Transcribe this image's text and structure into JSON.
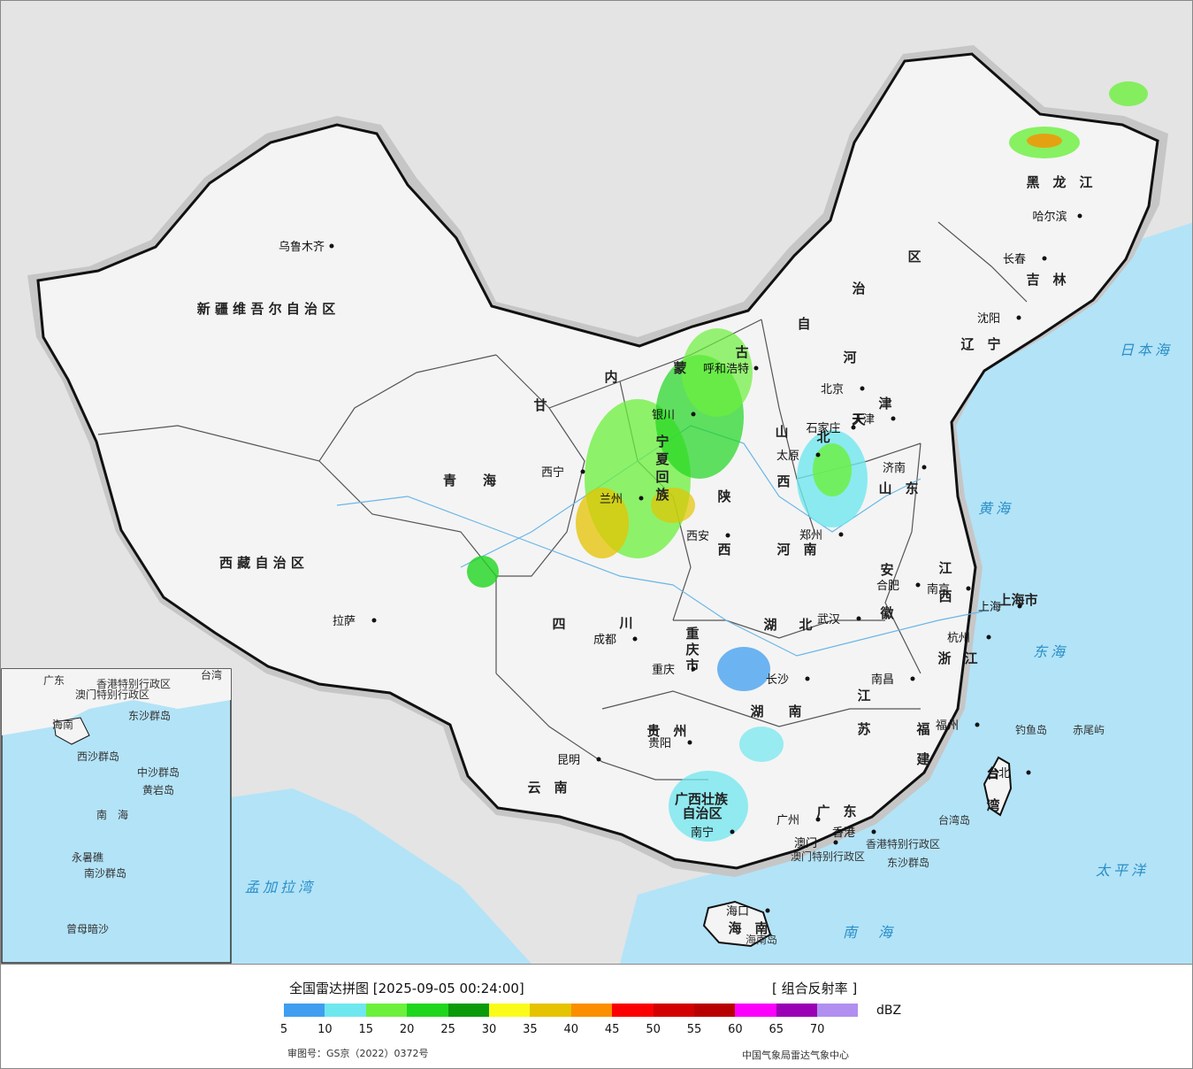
{
  "map": {
    "provinces": [
      {
        "name": "新 疆 维 吾 尔 自 治 区"
      },
      {
        "name": "西 藏 自 治 区"
      },
      {
        "name": "青　　海"
      },
      {
        "name": "甘"
      },
      {
        "name": "内"
      },
      {
        "name": "蒙"
      },
      {
        "name": "古"
      },
      {
        "name": "自"
      },
      {
        "name": "治"
      },
      {
        "name": "区"
      },
      {
        "name": "黑　龙　江"
      },
      {
        "name": "吉　林"
      },
      {
        "name": "辽　宁"
      },
      {
        "name": "河"
      },
      {
        "name": "北"
      },
      {
        "name": "山"
      },
      {
        "name": "西"
      },
      {
        "name": "山　东"
      },
      {
        "name": "河　南"
      },
      {
        "name": "陕"
      },
      {
        "name": "西"
      },
      {
        "name": "四"
      },
      {
        "name": "川"
      },
      {
        "name": "重"
      },
      {
        "name": "庆"
      },
      {
        "name": "市"
      },
      {
        "name": "湖"
      },
      {
        "name": "北"
      },
      {
        "name": "湖"
      },
      {
        "name": "南"
      },
      {
        "name": "安"
      },
      {
        "name": "徽"
      },
      {
        "name": "江"
      },
      {
        "name": "苏"
      },
      {
        "name": "浙　江"
      },
      {
        "name": "江"
      },
      {
        "name": "西"
      },
      {
        "name": "福"
      },
      {
        "name": "建"
      },
      {
        "name": "贵　州"
      },
      {
        "name": "云　南"
      },
      {
        "name": "广西壮族"
      },
      {
        "name": "自治区"
      },
      {
        "name": "广　东"
      },
      {
        "name": "海　南"
      },
      {
        "name": "台"
      },
      {
        "name": "湾"
      },
      {
        "name": "上海市"
      },
      {
        "name": "宁"
      },
      {
        "name": "夏"
      },
      {
        "name": "回"
      },
      {
        "name": "族"
      },
      {
        "name": "天"
      },
      {
        "name": "津"
      }
    ],
    "cities": [
      {
        "name": "乌鲁木齐"
      },
      {
        "name": "拉萨"
      },
      {
        "name": "西宁"
      },
      {
        "name": "兰州"
      },
      {
        "name": "银川"
      },
      {
        "name": "呼和浩特"
      },
      {
        "name": "北京"
      },
      {
        "name": "天津"
      },
      {
        "name": "石家庄"
      },
      {
        "name": "太原"
      },
      {
        "name": "济南"
      },
      {
        "name": "郑州"
      },
      {
        "name": "西安"
      },
      {
        "name": "成都"
      },
      {
        "name": "重庆"
      },
      {
        "name": "武汉"
      },
      {
        "name": "合肥"
      },
      {
        "name": "南京"
      },
      {
        "name": "上海"
      },
      {
        "name": "杭州"
      },
      {
        "name": "长沙"
      },
      {
        "name": "南昌"
      },
      {
        "name": "福州"
      },
      {
        "name": "台北"
      },
      {
        "name": "贵阳"
      },
      {
        "name": "昆明"
      },
      {
        "name": "南宁"
      },
      {
        "name": "广州"
      },
      {
        "name": "香港"
      },
      {
        "name": "澳门"
      },
      {
        "name": "海口"
      },
      {
        "name": "哈尔滨"
      },
      {
        "name": "长春"
      },
      {
        "name": "沈阳"
      }
    ],
    "seas": [
      {
        "name": "日本海"
      },
      {
        "name": "黄海"
      },
      {
        "name": "东海"
      },
      {
        "name": "太平洋"
      },
      {
        "name": "南　海"
      },
      {
        "name": "孟加拉湾"
      }
    ],
    "islands": [
      {
        "name": "钓鱼岛"
      },
      {
        "name": "赤尾屿"
      },
      {
        "name": "台湾岛"
      },
      {
        "name": "东沙群岛"
      },
      {
        "name": "海南岛"
      },
      {
        "name": "香港特别行政区"
      },
      {
        "name": "澳门特别行政区"
      }
    ],
    "inset": {
      "labels": [
        "广东",
        "香港特别行政区",
        "澳门特别行政区",
        "台湾",
        "东沙群岛",
        "海南",
        "西沙群岛",
        "中沙群岛",
        "黄岩岛",
        "南　海",
        "南沙群岛",
        "曾母暗沙",
        "永暑礁"
      ]
    },
    "colors": {
      "sea": "#b3e3f7",
      "land": "#f4f4f4",
      "foreign": "#e4e4e4",
      "border": "#111111"
    }
  },
  "legend": {
    "title": "全国雷达拼图 [2025-09-05 00:24:00]",
    "product": "[ 组合反射率 ]",
    "unit": "dBZ",
    "ticks": [
      "5",
      "10",
      "15",
      "20",
      "25",
      "30",
      "35",
      "40",
      "45",
      "50",
      "55",
      "60",
      "65",
      "70"
    ],
    "colors": [
      "#3f9ef0",
      "#6fe7ef",
      "#6cf03c",
      "#1fd61f",
      "#0a9a0a",
      "#fbfb1a",
      "#e6c300",
      "#fb8f00",
      "#fb0000",
      "#d20000",
      "#b80000",
      "#fb00fb",
      "#9a00b4",
      "#b08ff0"
    ],
    "approval": "审图号：GS京（2022）0372号",
    "agency": "中国气象局雷达气象中心"
  }
}
